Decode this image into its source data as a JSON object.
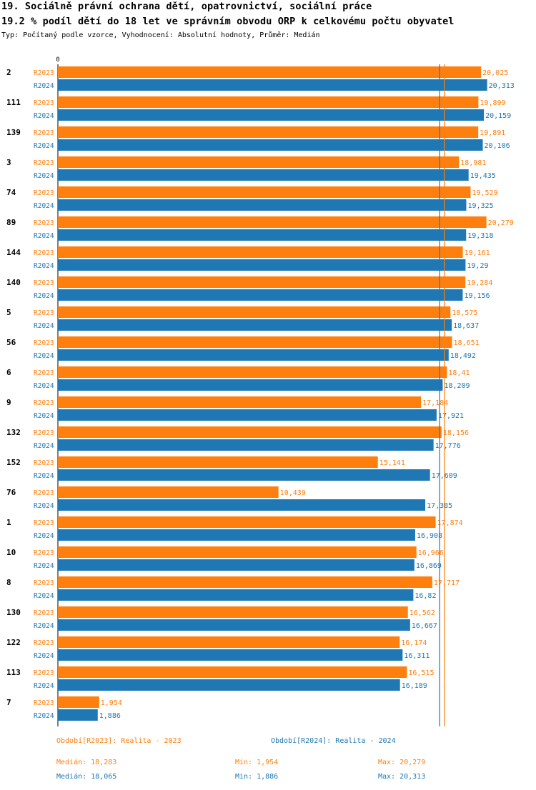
{
  "header": {
    "title_line1": "19. Sociálně právní ochrana dětí, opatrovnictví, sociální práce",
    "title_line2": "19.2 % podíl dětí do 18 let ve správním obvodu ORP k celkovému počtu obyvatel",
    "subtitle": "Typ: Počítaný podle vzorce, Vyhodnocení: Absolutní hodnoty, Průměr: Medián"
  },
  "colors": {
    "r2023": "#ff7f0e",
    "r2024": "#1f77b4"
  },
  "chart_data": {
    "type": "bar",
    "orientation": "horizontal",
    "axis_zero_label": "0",
    "xlim": [
      0,
      21
    ],
    "categories": [
      "2",
      "111",
      "139",
      "3",
      "74",
      "89",
      "144",
      "140",
      "5",
      "56",
      "6",
      "9",
      "132",
      "152",
      "76",
      "1",
      "10",
      "8",
      "130",
      "122",
      "113",
      "7"
    ],
    "series": [
      {
        "name": "R2023",
        "values": [
          20.025,
          19.899,
          19.891,
          18.981,
          19.529,
          20.279,
          19.161,
          19.284,
          18.575,
          18.651,
          18.41,
          17.184,
          18.156,
          15.141,
          10.439,
          17.874,
          16.966,
          17.717,
          16.562,
          16.174,
          16.515,
          1.954
        ],
        "labels": [
          "20,025",
          "19,899",
          "19,891",
          "18,981",
          "19,529",
          "20,279",
          "19,161",
          "19,284",
          "18,575",
          "18,651",
          "18,41",
          "17,184",
          "18,156",
          "15,141",
          "10,439",
          "17,874",
          "16,966",
          "17,717",
          "16,562",
          "16,174",
          "16,515",
          "1,954"
        ]
      },
      {
        "name": "R2024",
        "values": [
          20.313,
          20.159,
          20.106,
          19.435,
          19.325,
          19.318,
          19.29,
          19.156,
          18.637,
          18.492,
          18.209,
          17.921,
          17.776,
          17.609,
          17.385,
          16.908,
          16.869,
          16.82,
          16.667,
          16.311,
          16.189,
          1.886
        ],
        "labels": [
          "20,313",
          "20,159",
          "20,106",
          "19,435",
          "19,325",
          "19,318",
          "19,29",
          "19,156",
          "18,637",
          "18,492",
          "18,209",
          "17,921",
          "17,776",
          "17,609",
          "17,385",
          "16,908",
          "16,869",
          "16,82",
          "16,667",
          "16,311",
          "16,189",
          "1,886"
        ]
      }
    ],
    "medians": {
      "R2023": 18.283,
      "R2024": 18.065
    }
  },
  "legend": {
    "r2023": {
      "period": "Období[R2023]: Realita - 2023",
      "median": "Medián: 18,283",
      "min": "Min: 1,954",
      "max": "Max: 20,279"
    },
    "r2024": {
      "period": "Období[R2024]: Realita - 2024",
      "median": "Medián: 18,065",
      "min": "Min: 1,886",
      "max": "Max: 20,313"
    }
  }
}
